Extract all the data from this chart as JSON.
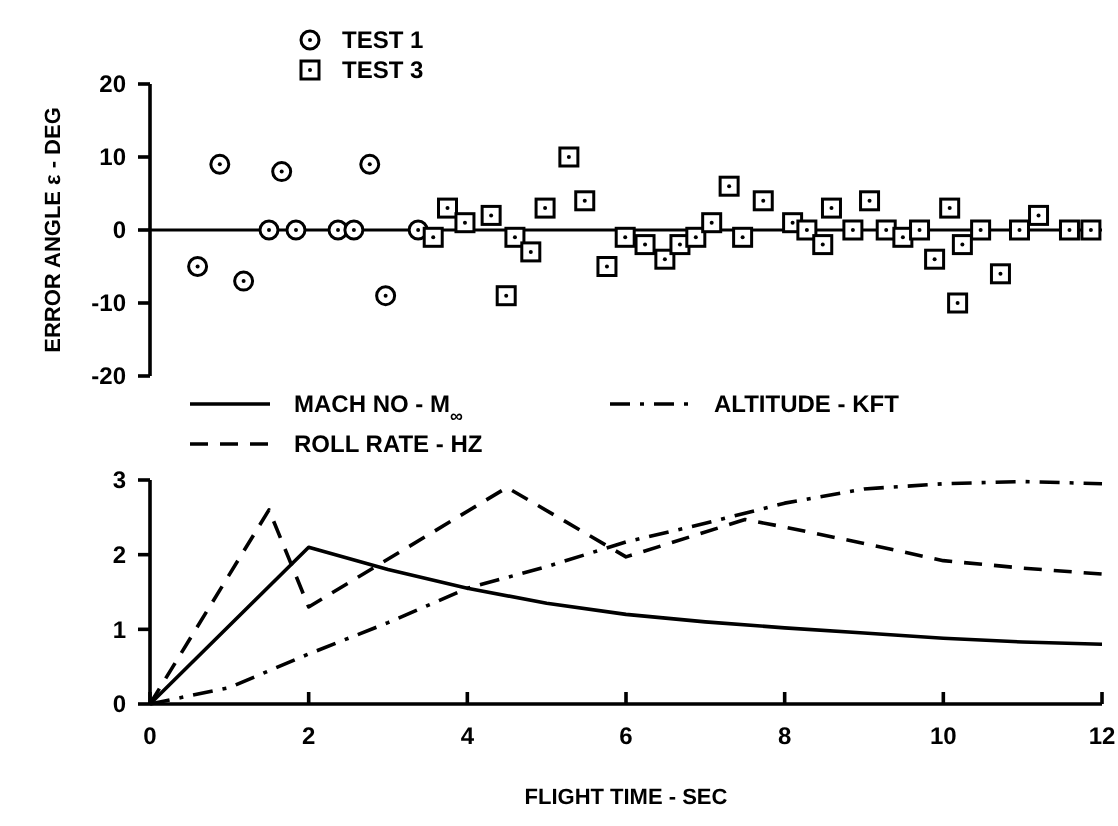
{
  "chart_data": [
    {
      "type": "scatter",
      "ylabel": "ERROR ANGLE ε - DEG",
      "xlim": [
        0,
        12
      ],
      "ylim": [
        -20,
        20
      ],
      "yticks": [
        -20,
        -10,
        0,
        10,
        20
      ],
      "tick_labels": "y",
      "legend": "top left",
      "grid": false,
      "ref_lines": [
        {
          "axis": "y",
          "value": 0
        }
      ],
      "series": [
        {
          "name": "TEST 1",
          "color": "#000000",
          "marker": "circle",
          "x": [
            0.6,
            0.88,
            1.18,
            1.5,
            1.66,
            1.84,
            2.37,
            2.57,
            2.77,
            2.97,
            3.38
          ],
          "values": [
            -5,
            9,
            -7,
            0,
            8,
            0,
            0,
            0,
            9,
            -9,
            0
          ]
        },
        {
          "name": "TEST 3",
          "color": "#000000",
          "marker": "square",
          "x": [
            3.57,
            3.75,
            3.97,
            4.3,
            4.49,
            4.6,
            4.8,
            4.98,
            5.28,
            5.48,
            5.76,
            5.99,
            6.24,
            6.49,
            6.68,
            6.88,
            7.08,
            7.3,
            7.47,
            7.73,
            8.1,
            8.28,
            8.48,
            8.59,
            8.86,
            9.07,
            9.28,
            9.49,
            9.7,
            9.89,
            10.08,
            10.18,
            10.24,
            10.47,
            10.72,
            10.96,
            11.2,
            11.59,
            11.86
          ],
          "values": [
            -1,
            3,
            1,
            2,
            -9,
            -1,
            -3,
            3,
            10,
            4,
            -5,
            -1,
            -2,
            -4,
            -2,
            -1,
            1,
            6,
            -1,
            4,
            1,
            0,
            -2,
            3,
            0,
            4,
            0,
            -1,
            0,
            -4,
            3,
            -10,
            -2,
            0,
            -6,
            0,
            2,
            0,
            0
          ]
        }
      ]
    },
    {
      "type": "line",
      "xlabel": "FLIGHT TIME - SEC",
      "xlim": [
        0,
        12
      ],
      "xticks": [
        0,
        2,
        4,
        6,
        8,
        10,
        12
      ],
      "ylim": [
        0,
        3
      ],
      "yticks": [
        0,
        1,
        2,
        3
      ],
      "legend": "top",
      "grid": false,
      "series": [
        {
          "name": "MACH NO - M$_{∞}$",
          "color": "#000000",
          "line_style": "solid",
          "x": [
            0,
            2,
            3,
            4,
            5,
            6,
            7,
            8,
            9,
            10,
            11,
            12
          ],
          "values": [
            0,
            2.1,
            1.8,
            1.55,
            1.35,
            1.2,
            1.1,
            1.02,
            0.95,
            0.88,
            0.83,
            0.8
          ]
        },
        {
          "name": "ROLL RATE - HZ",
          "color": "#000000",
          "line_style": "dashed",
          "x": [
            0,
            1.5,
            2,
            4.5,
            6,
            7.5,
            8,
            9,
            10,
            11,
            12
          ],
          "values": [
            0,
            2.6,
            1.3,
            2.9,
            1.97,
            2.47,
            2.37,
            2.15,
            1.92,
            1.82,
            1.74
          ]
        },
        {
          "name": "ALTITUDE - KFT",
          "color": "#000000",
          "line_style": "dashdot",
          "x": [
            0,
            1,
            2,
            3,
            4,
            5,
            6,
            7,
            8,
            9,
            10,
            11,
            12
          ],
          "values": [
            0,
            0.22,
            0.67,
            1.09,
            1.55,
            1.84,
            2.17,
            2.42,
            2.69,
            2.88,
            2.95,
            2.98,
            2.95
          ]
        }
      ]
    }
  ]
}
